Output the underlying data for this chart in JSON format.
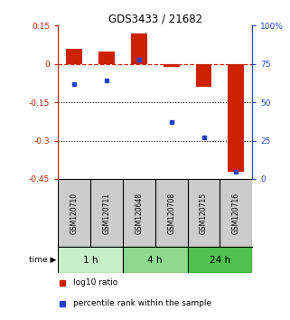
{
  "title": "GDS3433 / 21682",
  "samples": [
    "GSM120710",
    "GSM120711",
    "GSM120648",
    "GSM120708",
    "GSM120715",
    "GSM120716"
  ],
  "groups": [
    {
      "label": "1 h",
      "indices": [
        0,
        1
      ],
      "color": "#c8f0c8"
    },
    {
      "label": "4 h",
      "indices": [
        2,
        3
      ],
      "color": "#90d890"
    },
    {
      "label": "24 h",
      "indices": [
        4,
        5
      ],
      "color": "#50c050"
    }
  ],
  "log10_ratio": [
    0.06,
    0.05,
    0.12,
    -0.01,
    -0.09,
    -0.42
  ],
  "percentile_rank": [
    62,
    64,
    78,
    37,
    27,
    5
  ],
  "ylim_left": [
    -0.45,
    0.15
  ],
  "ylim_right": [
    0,
    100
  ],
  "bar_color": "#cc2200",
  "dot_color": "#2244cc",
  "zero_line_color": "#cc2200",
  "grid_line_color": "#000000",
  "title_color": "#000000",
  "left_axis_color": "#cc2200",
  "right_axis_color": "#2244cc",
  "left_ticks": [
    0.15,
    0,
    -0.15,
    -0.3,
    -0.45
  ],
  "right_ticks": [
    100,
    75,
    50,
    25,
    0
  ],
  "dotted_lines": [
    -0.15,
    -0.3
  ],
  "bar_width": 0.5,
  "sample_box_color": "#cccccc",
  "legend_bar_label": "log10 ratio",
  "legend_dot_label": "percentile rank within the sample"
}
